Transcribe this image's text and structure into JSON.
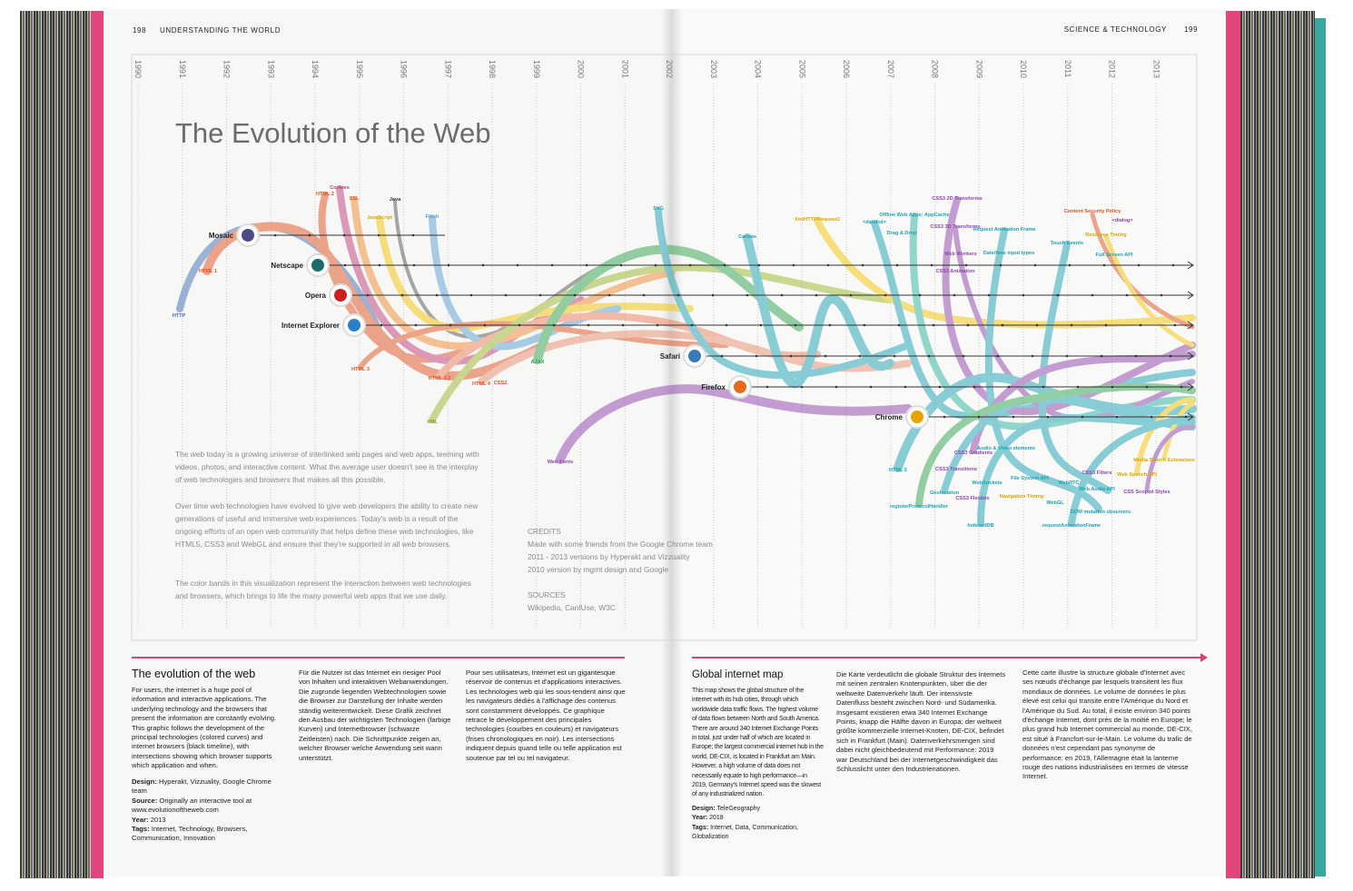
{
  "header": {
    "left_page_number": "198",
    "left_section": "UNDERSTANDING THE WORLD",
    "right_section": "SCIENCE & TECHNOLOGY",
    "right_page_number": "199"
  },
  "infographic": {
    "title": "The Evolution of the Web",
    "years": [
      "1990",
      "1991",
      "1992",
      "1993",
      "1994",
      "1995",
      "1996",
      "1997",
      "1998",
      "1999",
      "2000",
      "2001",
      "2002",
      "2003",
      "2004",
      "2005",
      "2006",
      "2007",
      "2008",
      "2009",
      "2010",
      "2011",
      "2012",
      "2013"
    ],
    "browsers": [
      "Mosaic",
      "Netscape",
      "Opera",
      "Internet Explorer",
      "Safari",
      "Firefox",
      "Chrome"
    ],
    "technologies": [
      "HTTP",
      "HTML 1",
      "HTML 2",
      "Cookies",
      "SSL",
      "Java",
      "JavaScript",
      "Flash",
      "HTML 3",
      "HTML 3.2",
      "HTML 4",
      "CSS2",
      "XML",
      "AJAX",
      "Web Fonts",
      "SVG",
      "Canvas",
      "XmlHTTPRequest2",
      "<datalist>",
      "Offline Web Apps: AppCache",
      "Drag & Drop",
      "CSS3 2D Transforms",
      "CSS3 3D Transforms",
      "Web Workers",
      "CSS3 Animation",
      "Request Animation Frame",
      "Date/time input types",
      "Touch Events",
      "Content Security Policy",
      "<dialog>",
      "Resource Timing",
      "Full Screen API",
      "HTML 5",
      "CSS3 Gradients",
      "Audio & Video elements",
      "CSS3 Transitions",
      "WebSockets",
      "File System API",
      "Geolocation",
      "CSS3 Flexbox",
      "Navigation Timing",
      "registerProtocolHandler",
      "IndexedDB",
      "WebRTC",
      "Web Audio API",
      "WebGL",
      "DOM mutation observers",
      "requestAnimationFrame",
      "CSS3 Filters",
      "Web Speech API",
      "Media Search Extensions",
      "CSS Scoped Styles"
    ],
    "intro": [
      "The web today is a growing universe of interlinked web pages and web apps, teeming with videos, photos, and interactive content. What the average user doesn't see is the interplay of web technologies and browsers that makes all this possible.",
      "Over time web technologies have evolved to give web developers the ability to create new generations of useful and immersive web experiences. Today's web is a result of the ongoing efforts of an open web community that helps define these web technologies, like HTML5, CSS3 and WebGL and ensure that they're supported in all web browsers.",
      "The color bands in this visualization represent the interaction between web technologies and browsers, which brings to life the many powerful web apps that we use daily."
    ],
    "credits_heading": "CREDITS",
    "credits": [
      "Made with some friends from the Google Chrome team",
      "2011 - 2013 versions by Hyperakt and Vizzuality",
      "2010 version by mgmt design and Google"
    ],
    "sources_heading": "SOURCES",
    "sources": "Wikipedia, CanIUse, W3C"
  },
  "left_article": {
    "title": "The evolution of the web",
    "english": "For users, the internet is a huge pool of information and interactive applications. The underlying technology and the browsers that present the information are constantly evolving. This graphic follows the development of the principal technologies (colored curves) and internet browsers (black timeline), with intersections showing which browser supports which application and when.",
    "meta": [
      {
        "label": "Design:",
        "text": "Hyperakt, Vizzuality, Google Chrome team"
      },
      {
        "label": "Source:",
        "text": "Originally an interactive tool at www.evolutionoftheweb.com"
      },
      {
        "label": "Year:",
        "text": "2013"
      },
      {
        "label": "Tags:",
        "text": "Internet, Technology, Browsers, Communication, Innovation"
      }
    ],
    "german": "Für die Nutzer ist das Internet ein riesiger Pool von Inhalten und interaktiven Webanwendungen. Die zugrunde liegenden Webtechnologien sowie die Browser zur Darstellung der Inhalte werden ständig weiterentwickelt. Diese Grafik zeichnet den Ausbau der wichtigsten Technologien (farbige Kurven) und Internetbrowser (schwarze Zeitleisten) nach. Die Schnittpunkte zeigen an, welcher Browser welche Anwendung seit wann unterstützt.",
    "french": "Pour ses utilisateurs, Internet est un gigantesque réservoir de contenus et d'applications interactives. Les technologies web qui les sous-tendent ainsi que les navigateurs dédiés à l'affichage des contenus sont constamment développés. Ce graphique retrace le développement des principales technologies (courbes en couleurs) et navigateurs (frises chronologiques en noir). Les intersections indiquent depuis quand telle ou telle application est soutenue par tel ou tel navigateur."
  },
  "right_article": {
    "title": "Global internet map",
    "english": "This map shows the global structure of the internet with its hub cities, through which worldwide data traffic flows. The highest volume of data flows between North and South America. There are around 340 Internet Exchange Points in total, just under half of which are located in Europe; the largest commercial internet hub in the world, DE-CIX, is located in Frankfurt am Main. However, a high volume of data does not necessarily equate to high performance—in 2019, Germany's Internet speed was the slowest of any industrialized nation.",
    "meta": [
      {
        "label": "Design:",
        "text": "TeleGeography"
      },
      {
        "label": "Year:",
        "text": "2018"
      },
      {
        "label": "Tags:",
        "text": "Internet, Data, Communication, Globalization"
      }
    ],
    "german": "Die Karte verdeutlicht die globale Struktur des Internets mit seinen zentralen Knotenpunkten, über die der weltweite Datenverkehr läuft. Der intensivste Datenfluss besteht zwischen Nord- und Südamerika. Insgesamt existieren etwa 340 Internet Exchange Points, knapp die Hälfte davon in Europa; der weltweit größte kommerzielle Internet-Knoten, DE-CIX, befindet sich in Frankfurt (Main). Datenverkehrsmengen sind dabei nicht gleichbedeutend mit Performance: 2019 war Deutschland bei der Internetgeschwindigkeit das Schlusslicht unter den Industrienationen.",
    "french": "Cette carte illustre la structure globale d'Internet avec ses nœuds d'échange par lesquels transitent les flux mondiaux de données. Le volume de données le plus élevé est celui qui transite entre l'Amérique du Nord et l'Amérique du Sud. Au total, il existe environ 340 points d'échange Internet, dont près de la moitié en Europe; le plus grand hub Internet commercial au monde, DE-CIX, est situé à Francfort-sur-le-Main. Le volume du trafic de données n'est cependant pas synonyme de performance: en 2019, l'Allemagne était la lanterne rouge des nations industrialisées en termes de vitesse Internet."
  }
}
